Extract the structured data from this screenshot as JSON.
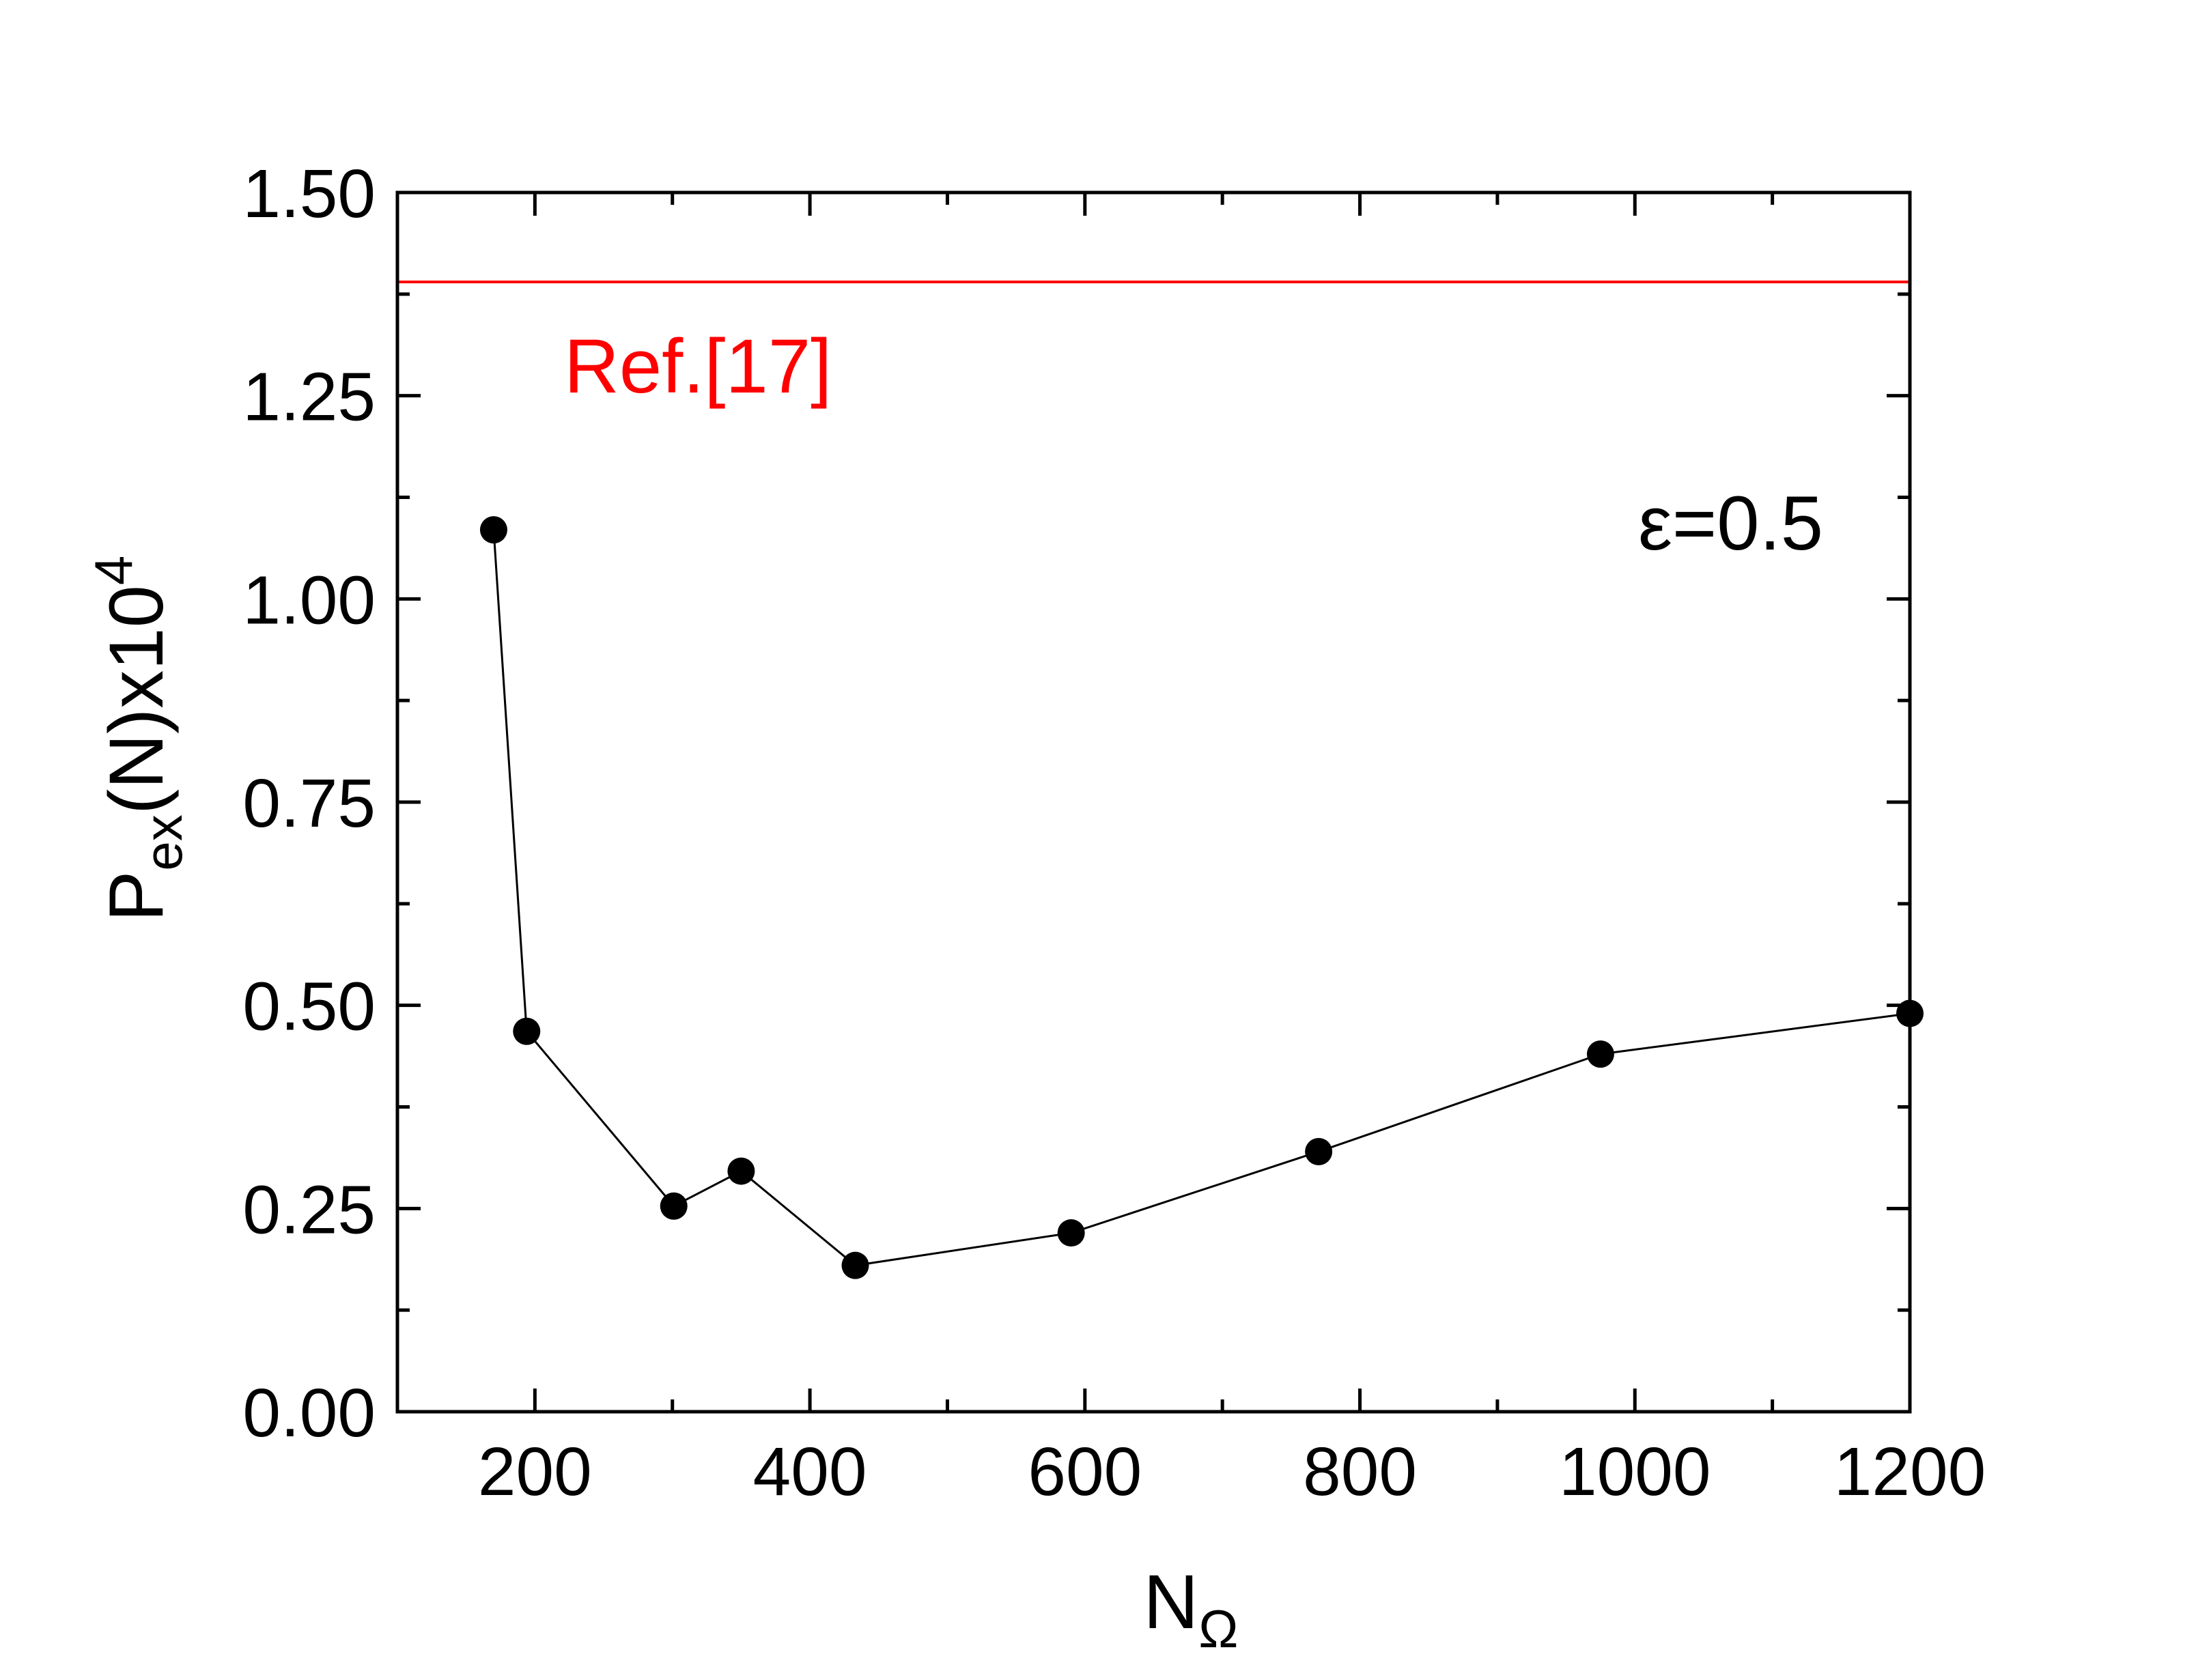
{
  "chart_data": {
    "type": "line",
    "xlim": [
      100,
      1200
    ],
    "ylim": [
      0.0,
      1.5
    ],
    "x_ticks": [
      200,
      400,
      600,
      800,
      1000,
      1200
    ],
    "x_tick_labels": [
      "200",
      "400",
      "600",
      "800",
      "1000",
      "1200"
    ],
    "x_minor_ticks": [
      100,
      300,
      500,
      700,
      900,
      1100
    ],
    "y_ticks": [
      0.0,
      0.25,
      0.5,
      0.75,
      1.0,
      1.25,
      1.5
    ],
    "y_tick_labels": [
      "0.00",
      "0.25",
      "0.50",
      "0.75",
      "1.00",
      "1.25",
      "1.50"
    ],
    "y_minor_ticks": [
      0.125,
      0.375,
      0.625,
      0.875,
      1.125,
      1.375
    ],
    "xlabel": {
      "main": "N",
      "sub": "Ω"
    },
    "ylabel": {
      "main": "P",
      "sub": "ex",
      "rest": "(N)x10",
      "sup": "4"
    },
    "grid": false,
    "series": [
      {
        "color": "#000000",
        "marker": "filled-circle",
        "x": [
          170,
          194,
          301,
          350,
          433,
          590,
          770,
          975,
          1200
        ],
        "y": [
          1.085,
          0.468,
          0.253,
          0.296,
          0.18,
          0.22,
          0.32,
          0.44,
          0.49
        ]
      }
    ],
    "reference_line": {
      "y": 1.39,
      "color": "#ff0000",
      "label": "Ref.[17]"
    },
    "annotations": [
      {
        "text": "ε=0.5",
        "position": "top-right"
      }
    ]
  }
}
